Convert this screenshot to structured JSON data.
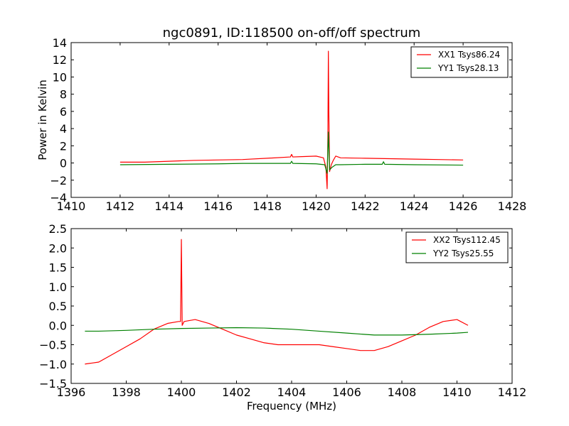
{
  "chart_data": [
    {
      "type": "line",
      "title": "ngc0891, ID:118500 on-off/off spectrum",
      "xlabel": "",
      "ylabel": "Power in Kelvin",
      "xlim": [
        1410,
        1428
      ],
      "ylim": [
        -4,
        14
      ],
      "xticks": [
        "1410",
        "1412",
        "1414",
        "1416",
        "1418",
        "1420",
        "1422",
        "1424",
        "1426",
        "1428"
      ],
      "yticks": [
        "−4",
        "−2",
        "0",
        "2",
        "4",
        "6",
        "8",
        "10",
        "12",
        "14"
      ],
      "legend_position": "top-right",
      "grid": false,
      "series": [
        {
          "name": "XX1 Tsys86.24",
          "color": "#ff0000",
          "x": [
            1412,
            1413,
            1414,
            1415,
            1416,
            1417,
            1418,
            1418.95,
            1419.0,
            1419.05,
            1419.5,
            1420.0,
            1420.3,
            1420.4,
            1420.45,
            1420.48,
            1420.5,
            1420.52,
            1420.55,
            1420.62,
            1420.7,
            1420.8,
            1420.9,
            1421.0,
            1422,
            1423,
            1424,
            1425,
            1426
          ],
          "y": [
            0.1,
            0.1,
            0.2,
            0.3,
            0.35,
            0.4,
            0.55,
            0.7,
            1.0,
            0.7,
            0.75,
            0.8,
            0.6,
            -0.5,
            -3.0,
            3.0,
            13.0,
            6.0,
            -1.0,
            -0.2,
            0.3,
            0.8,
            0.7,
            0.6,
            0.55,
            0.5,
            0.45,
            0.4,
            0.35
          ]
        },
        {
          "name": "YY1 Tsys28.13",
          "color": "#008000",
          "x": [
            1412,
            1414,
            1416,
            1417,
            1418,
            1418.95,
            1419.0,
            1419.05,
            1420,
            1420.35,
            1420.45,
            1420.5,
            1420.55,
            1420.65,
            1420.8,
            1421,
            1422,
            1422.7,
            1422.75,
            1422.8,
            1424,
            1426
          ],
          "y": [
            -0.2,
            -0.15,
            -0.1,
            -0.05,
            -0.05,
            -0.05,
            0.2,
            -0.05,
            -0.1,
            -0.2,
            -1.2,
            3.6,
            -0.8,
            -0.5,
            -0.2,
            -0.2,
            -0.15,
            -0.15,
            0.15,
            -0.15,
            -0.2,
            -0.25
          ]
        }
      ]
    },
    {
      "type": "line",
      "title": "",
      "xlabel": "Frequency (MHz)",
      "ylabel": "",
      "xlim": [
        1396,
        1412
      ],
      "ylim": [
        -1.5,
        2.5
      ],
      "xticks": [
        "1396",
        "1398",
        "1400",
        "1402",
        "1404",
        "1406",
        "1408",
        "1410",
        "1412"
      ],
      "yticks": [
        "−1.5",
        "−1.0",
        "−0.5",
        "0.0",
        "0.5",
        "1.0",
        "1.5",
        "2.0",
        "2.5"
      ],
      "legend_position": "top-right",
      "grid": false,
      "series": [
        {
          "name": "XX2 Tsys112.45",
          "color": "#ff0000",
          "x": [
            1396.5,
            1397,
            1397.5,
            1398,
            1398.5,
            1399,
            1399.5,
            1399.9,
            1399.97,
            1400.0,
            1400.03,
            1400.1,
            1400.5,
            1401,
            1401.5,
            1402,
            1402.5,
            1403,
            1403.5,
            1404,
            1404.5,
            1405,
            1405.5,
            1406,
            1406.5,
            1407,
            1407.5,
            1408,
            1408.5,
            1409,
            1409.5,
            1410,
            1410.4
          ],
          "y": [
            -1.0,
            -0.95,
            -0.75,
            -0.55,
            -0.35,
            -0.1,
            0.05,
            0.1,
            0.1,
            2.22,
            0.0,
            0.1,
            0.15,
            0.05,
            -0.1,
            -0.25,
            -0.35,
            -0.45,
            -0.5,
            -0.5,
            -0.5,
            -0.5,
            -0.55,
            -0.6,
            -0.65,
            -0.65,
            -0.55,
            -0.4,
            -0.25,
            -0.05,
            0.1,
            0.15,
            0.0
          ]
        },
        {
          "name": "YY2 Tsys25.55",
          "color": "#008000",
          "x": [
            1396.5,
            1397,
            1398,
            1399,
            1400,
            1401,
            1402,
            1403,
            1404,
            1405,
            1406,
            1407,
            1408,
            1409,
            1410,
            1410.4
          ],
          "y": [
            -0.15,
            -0.15,
            -0.13,
            -0.1,
            -0.08,
            -0.07,
            -0.06,
            -0.07,
            -0.1,
            -0.15,
            -0.2,
            -0.25,
            -0.25,
            -0.23,
            -0.2,
            -0.18
          ]
        }
      ]
    }
  ]
}
